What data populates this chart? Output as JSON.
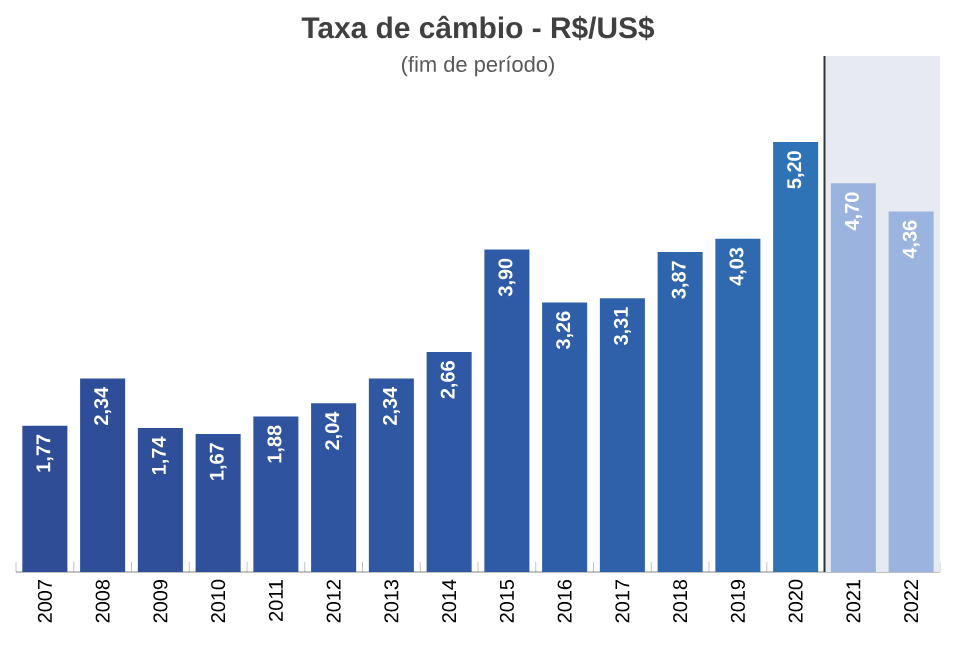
{
  "chart_data": {
    "type": "bar",
    "title": "Taxa de câmbio - R$/US$",
    "subtitle": "(fim de período)",
    "categories": [
      "2007",
      "2008",
      "2009",
      "2010",
      "2011",
      "2012",
      "2013",
      "2014",
      "2015",
      "2016",
      "2017",
      "2018",
      "2019",
      "2020",
      "2021",
      "2022"
    ],
    "values": [
      1.77,
      2.34,
      1.74,
      1.67,
      1.88,
      2.04,
      2.34,
      2.66,
      3.9,
      3.26,
      3.31,
      3.87,
      4.03,
      5.2,
      4.7,
      4.36
    ],
    "value_labels": [
      "1,77",
      "2,34",
      "1,74",
      "1,67",
      "1,88",
      "2,04",
      "2,34",
      "2,66",
      "3,90",
      "3,26",
      "3,31",
      "3,87",
      "4,03",
      "5,20",
      "4,70",
      "4,36"
    ],
    "colors": [
      "#2f4c97",
      "#2f4e99",
      "#2f4f9b",
      "#2f519c",
      "#2f539e",
      "#2f55a0",
      "#2f57a2",
      "#2f59a4",
      "#2f5ba6",
      "#2f5ea8",
      "#2f61aa",
      "#2f65ad",
      "#2f69b0",
      "#2e73b6",
      "#9bb4df",
      "#9bb4df"
    ],
    "bands": [
      {
        "axis": "x",
        "from": "2021",
        "to": "2022",
        "color": "#e7ebf1"
      }
    ]
  }
}
